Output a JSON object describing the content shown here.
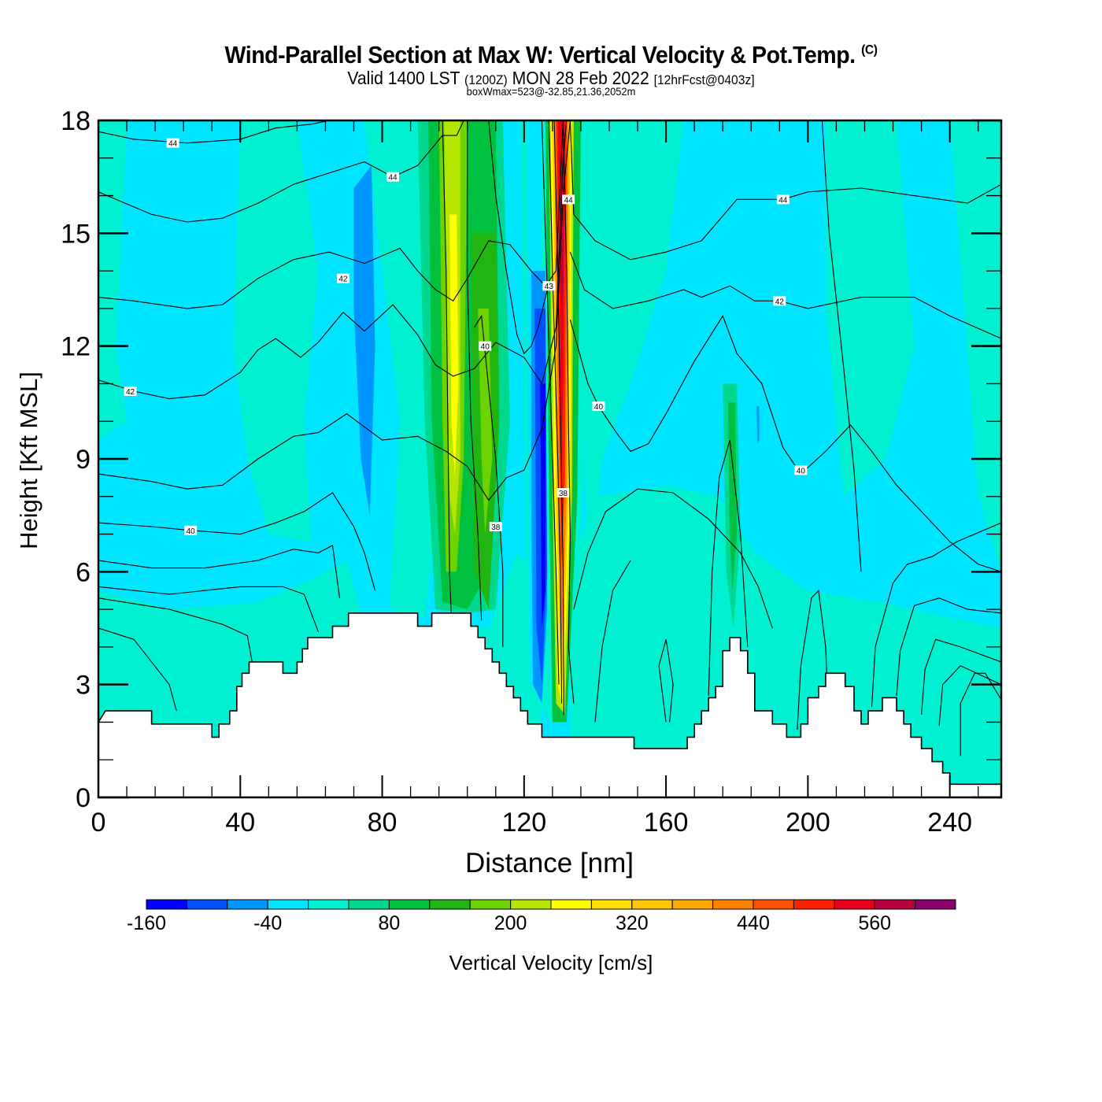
{
  "header": {
    "title": "Wind-Parallel Section at Max W: Vertical Velocity & Pot.Temp.",
    "copyright": "(C)",
    "valid_prefix": "Valid 1400 LST",
    "valid_utc": "(1200Z)",
    "valid_date": "MON 28 Feb 2022",
    "forecast": "[12hrFcst@0403z]",
    "subtitle": "boxWmax=523@-32.85,21.36,2052m"
  },
  "chart_data": {
    "type": "heatmap",
    "title": "Wind-Parallel Section at Max W: Vertical Velocity & Pot.Temp.",
    "xlabel": "Distance [nm]",
    "ylabel": "Height [Kft MSL]",
    "xlim": [
      0,
      254.5
    ],
    "ylim": [
      0,
      18
    ],
    "x_ticks": [
      0,
      40,
      80,
      120,
      160,
      200,
      240
    ],
    "x_tick_labels": [
      "0",
      "40",
      "80",
      "120",
      "160",
      "200",
      "240"
    ],
    "x_minor_step": 8,
    "y_ticks": [
      0,
      3,
      6,
      9,
      12,
      15,
      18
    ],
    "y_tick_labels": [
      "0",
      "3",
      "6",
      "9",
      "12",
      "15",
      "18"
    ],
    "y_minor_step": 1,
    "background_level_color": "#00e5ff",
    "colorbar": {
      "label": "Vertical Velocity [cm/s]",
      "bounds": [
        -160,
        -120,
        -80,
        -40,
        0,
        40,
        80,
        120,
        160,
        200,
        240,
        280,
        320,
        360,
        400,
        440,
        480,
        520,
        560,
        600,
        640
      ],
      "tick_labels": [
        "-160",
        "-40",
        "80",
        "200",
        "320",
        "440",
        "560"
      ],
      "tick_values": [
        -160,
        -40,
        80,
        200,
        320,
        440,
        560
      ],
      "colors": [
        "#0000ff",
        "#0050ff",
        "#0096ff",
        "#00e5ff",
        "#00f0d2",
        "#00d890",
        "#00c040",
        "#20b510",
        "#6cd200",
        "#b4e600",
        "#ffff00",
        "#ffe000",
        "#ffc800",
        "#ffa800",
        "#ff8000",
        "#ff5000",
        "#ff2000",
        "#e8001a",
        "#b8003c",
        "#8c006e"
      ]
    },
    "wmax_cm_s": 523,
    "contour_variable": "Potential Temperature",
    "contour_labels": [
      {
        "value": "44",
        "x": 21,
        "y": 17.4
      },
      {
        "value": "44",
        "x": 83,
        "y": 16.5
      },
      {
        "value": "44",
        "x": 132.5,
        "y": 15.9
      },
      {
        "value": "44",
        "x": 193,
        "y": 15.9
      },
      {
        "value": "42",
        "x": 69,
        "y": 13.8
      },
      {
        "value": "43",
        "x": 127,
        "y": 13.6
      },
      {
        "value": "42",
        "x": 192,
        "y": 13.2
      },
      {
        "value": "40",
        "x": 109,
        "y": 12.0
      },
      {
        "value": "42",
        "x": 9,
        "y": 10.8
      },
      {
        "value": "40",
        "x": 141,
        "y": 10.4
      },
      {
        "value": "40",
        "x": 198,
        "y": 8.7
      },
      {
        "value": "38",
        "x": 131,
        "y": 8.1
      },
      {
        "value": "40",
        "x": 26,
        "y": 7.1
      },
      {
        "value": "38",
        "x": 112,
        "y": 7.2
      }
    ],
    "terrain_kft": [
      [
        0,
        2.0
      ],
      [
        2,
        2.3
      ],
      [
        15,
        2.3
      ],
      [
        15,
        1.95
      ],
      [
        32,
        1.95
      ],
      [
        32,
        1.6
      ],
      [
        34,
        1.6
      ],
      [
        34,
        1.95
      ],
      [
        37,
        1.95
      ],
      [
        37,
        2.3
      ],
      [
        39,
        2.3
      ],
      [
        39,
        2.95
      ],
      [
        40.5,
        2.95
      ],
      [
        40.5,
        3.3
      ],
      [
        42.5,
        3.3
      ],
      [
        42.5,
        3.6
      ],
      [
        52,
        3.6
      ],
      [
        52,
        3.3
      ],
      [
        56,
        3.3
      ],
      [
        56,
        3.6
      ],
      [
        57.5,
        3.6
      ],
      [
        57.5,
        3.95
      ],
      [
        59,
        3.95
      ],
      [
        59,
        4.25
      ],
      [
        66,
        4.25
      ],
      [
        66,
        4.55
      ],
      [
        70.5,
        4.55
      ],
      [
        70.5,
        4.9
      ],
      [
        90,
        4.9
      ],
      [
        90,
        4.55
      ],
      [
        94,
        4.55
      ],
      [
        94,
        4.9
      ],
      [
        105,
        4.9
      ],
      [
        105,
        4.55
      ],
      [
        107,
        4.55
      ],
      [
        107,
        4.25
      ],
      [
        109,
        4.25
      ],
      [
        109,
        3.95
      ],
      [
        111,
        3.95
      ],
      [
        111,
        3.6
      ],
      [
        113,
        3.6
      ],
      [
        113,
        3.3
      ],
      [
        115,
        3.3
      ],
      [
        115,
        2.95
      ],
      [
        117,
        2.95
      ],
      [
        117,
        2.65
      ],
      [
        119,
        2.65
      ],
      [
        119,
        2.3
      ],
      [
        121,
        2.3
      ],
      [
        121,
        1.95
      ],
      [
        125,
        1.95
      ],
      [
        125,
        1.6
      ],
      [
        151,
        1.6
      ],
      [
        151,
        1.3
      ],
      [
        166,
        1.3
      ],
      [
        166,
        1.6
      ],
      [
        168,
        1.6
      ],
      [
        168,
        1.95
      ],
      [
        170,
        1.95
      ],
      [
        170,
        2.3
      ],
      [
        172,
        2.3
      ],
      [
        172,
        2.65
      ],
      [
        174,
        2.65
      ],
      [
        174,
        2.95
      ],
      [
        176,
        2.95
      ],
      [
        176,
        3.9
      ],
      [
        178,
        3.9
      ],
      [
        178,
        4.25
      ],
      [
        181,
        4.25
      ],
      [
        181,
        3.9
      ],
      [
        183,
        3.9
      ],
      [
        183,
        3.3
      ],
      [
        185,
        3.3
      ],
      [
        185,
        2.3
      ],
      [
        190,
        2.3
      ],
      [
        190,
        1.95
      ],
      [
        194,
        1.95
      ],
      [
        194,
        1.6
      ],
      [
        198,
        1.6
      ],
      [
        198,
        1.95
      ],
      [
        200,
        1.95
      ],
      [
        200,
        2.65
      ],
      [
        203,
        2.65
      ],
      [
        203,
        2.95
      ],
      [
        205,
        2.95
      ],
      [
        205,
        3.3
      ],
      [
        210.5,
        3.3
      ],
      [
        210.5,
        2.95
      ],
      [
        213,
        2.95
      ],
      [
        213,
        2.3
      ],
      [
        215,
        2.3
      ],
      [
        215,
        1.95
      ],
      [
        217,
        1.95
      ],
      [
        217,
        2.3
      ],
      [
        221,
        2.3
      ],
      [
        221,
        2.65
      ],
      [
        225,
        2.65
      ],
      [
        225,
        2.3
      ],
      [
        227,
        2.3
      ],
      [
        227,
        1.95
      ],
      [
        229,
        1.95
      ],
      [
        229,
        1.6
      ],
      [
        232,
        1.6
      ],
      [
        232,
        1.3
      ],
      [
        235,
        1.3
      ],
      [
        235,
        0.95
      ],
      [
        238,
        0.95
      ],
      [
        238,
        0.65
      ],
      [
        240,
        0.65
      ],
      [
        240,
        0.35
      ],
      [
        244,
        0.35
      ],
      [
        244,
        0.35
      ],
      [
        254.5,
        0.35
      ]
    ]
  }
}
